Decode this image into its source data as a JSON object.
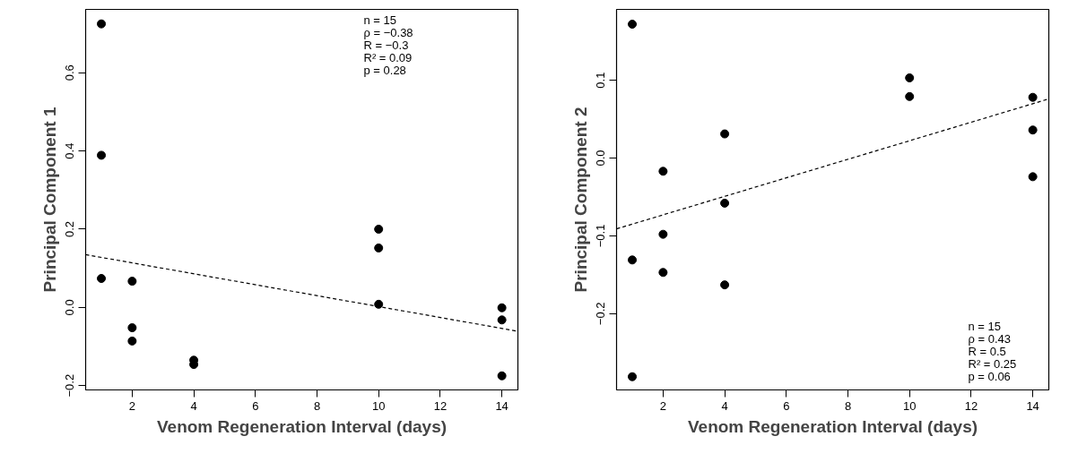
{
  "chart_data": [
    {
      "type": "scatter",
      "xlabel": "Venom Regeneration Interval (days)",
      "ylabel": "Principal Component 1",
      "xlim": [
        0.49,
        14.52
      ],
      "ylim": [
        -0.211,
        0.762
      ],
      "xticks": [
        2,
        4,
        6,
        8,
        10,
        12,
        14
      ],
      "yticks": [
        {
          "value": -0.2,
          "label": "−0.2"
        },
        {
          "value": 0.0,
          "label": "0.0"
        },
        {
          "value": 0.2,
          "label": "0.2"
        },
        {
          "value": 0.4,
          "label": "0.4"
        },
        {
          "value": 0.6,
          "label": "0.6"
        }
      ],
      "grid": false,
      "series": [
        {
          "marker": "circle",
          "color": "#000000",
          "x": [
            1,
            1,
            1,
            2,
            2,
            2,
            4,
            4,
            10,
            10,
            10,
            14,
            14,
            14
          ],
          "values": [
            0.725,
            0.389,
            0.074,
            0.067,
            -0.052,
            -0.086,
            -0.135,
            -0.146,
            0.2,
            0.152,
            0.008,
            -0.001,
            -0.032,
            -0.175
          ]
        },
        {
          "type": "line",
          "color": "#000000",
          "line_style": "dashed",
          "x": [
            0.49,
            14.52
          ],
          "values": [
            0.135,
            -0.061
          ]
        }
      ],
      "annotations": [
        "n = 15",
        "ρ = −0.38",
        "R = −0.3",
        "R² = 0.09",
        "p = 0.28"
      ]
    },
    {
      "type": "scatter",
      "xlabel": "Venom Regeneration Interval (days)",
      "ylabel": "Principal Component 2",
      "xlim": [
        0.49,
        14.52
      ],
      "ylim": [
        -0.298,
        0.191
      ],
      "xticks": [
        2,
        4,
        6,
        8,
        10,
        12,
        14
      ],
      "yticks": [
        {
          "value": -0.2,
          "label": "−0.2"
        },
        {
          "value": -0.1,
          "label": "−0.1"
        },
        {
          "value": 0.0,
          "label": "0.0"
        },
        {
          "value": 0.1,
          "label": "0.1"
        }
      ],
      "grid": false,
      "series": [
        {
          "marker": "circle",
          "color": "#000000",
          "x": [
            1,
            1,
            1,
            2,
            2,
            2,
            4,
            4,
            4,
            10,
            10,
            14,
            14,
            14
          ],
          "values": [
            0.172,
            -0.131,
            -0.281,
            -0.017,
            -0.098,
            -0.147,
            0.031,
            -0.058,
            -0.163,
            0.103,
            0.079,
            0.078,
            0.036,
            -0.024
          ]
        },
        {
          "type": "line",
          "color": "#000000",
          "line_style": "dashed",
          "x": [
            0.49,
            14.52
          ],
          "values": [
            -0.091,
            0.076
          ]
        }
      ],
      "annotations": [
        "n = 15",
        "ρ = 0.43",
        "R = 0.5",
        "R² = 0.25",
        "p = 0.06"
      ]
    }
  ]
}
